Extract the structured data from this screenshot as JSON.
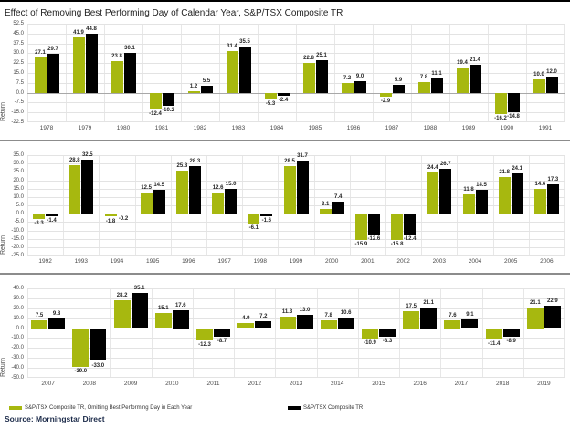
{
  "title": "Effect of Removing Best Performing Day of Calendar Year, S&P/TSX Composite TR",
  "source": "Source: Morningstar Direct",
  "colors": {
    "series_green": "#a7b80f",
    "series_black": "#000000",
    "grid": "#e3e3e3",
    "zero_line": "#a8a8a8",
    "separator": "#8c8c8c",
    "top_border": "#000000",
    "source_text": "#1c2b4a"
  },
  "legend": [
    {
      "label": "S&P/TSX Composite TR, Omitting Best Performing Day in Each Year",
      "color": "#a7b80f"
    },
    {
      "label": "S&P/TSX Composite TR",
      "color": "#000000"
    }
  ],
  "chart_data": [
    {
      "type": "bar",
      "title": "",
      "xlabel": "",
      "ylabel": "Return",
      "categories": [
        "1978",
        "1979",
        "1980",
        "1981",
        "1982",
        "1983",
        "1984",
        "1985",
        "1986",
        "1987",
        "1988",
        "1989",
        "1990",
        "1991"
      ],
      "series": [
        {
          "name": "S&P/TSX Composite TR, Omitting Best Performing Day in Each Year",
          "color": "#a7b80f",
          "values": [
            27.1,
            41.9,
            23.8,
            -12.4,
            1.2,
            31.4,
            -5.3,
            22.8,
            7.2,
            -2.9,
            7.8,
            19.4,
            -16.2,
            10.0
          ]
        },
        {
          "name": "S&P/TSX Composite TR",
          "color": "#000000",
          "values": [
            29.7,
            44.8,
            30.1,
            -10.2,
            5.5,
            35.5,
            -2.4,
            25.1,
            9.0,
            5.9,
            11.1,
            21.4,
            -14.8,
            12.0
          ]
        }
      ],
      "ylim": [
        -22.5,
        52.5
      ],
      "ytick_step": 7.5,
      "yticks": [
        52.5,
        45.0,
        37.5,
        30.0,
        22.5,
        15.0,
        7.5,
        0.0,
        -7.5,
        -15.0,
        -22.5
      ],
      "grid": true,
      "value_labels": true,
      "legend_position": "bottom"
    },
    {
      "type": "bar",
      "title": "",
      "xlabel": "",
      "ylabel": "Return",
      "categories": [
        "1992",
        "1993",
        "1994",
        "1995",
        "1996",
        "1997",
        "1998",
        "1999",
        "2000",
        "2001",
        "2002",
        "2003",
        "2004",
        "2005",
        "2006"
      ],
      "series": [
        {
          "name": "S&P/TSX Composite TR, Omitting Best Performing Day in Each Year",
          "color": "#a7b80f",
          "values": [
            -3.3,
            28.8,
            -1.8,
            12.5,
            25.8,
            12.6,
            -6.1,
            28.5,
            3.1,
            -15.9,
            -15.8,
            24.4,
            11.8,
            21.8,
            14.6
          ]
        },
        {
          "name": "S&P/TSX Composite TR",
          "color": "#000000",
          "values": [
            -1.4,
            32.5,
            -0.2,
            14.5,
            28.3,
            15.0,
            -1.6,
            31.7,
            7.4,
            -12.6,
            -12.4,
            26.7,
            14.5,
            24.1,
            17.3
          ]
        }
      ],
      "ylim": [
        -25.0,
        35.0
      ],
      "ytick_step": 5.0,
      "yticks": [
        35.0,
        30.0,
        25.0,
        20.0,
        15.0,
        10.0,
        5.0,
        0.0,
        -5.0,
        -10.0,
        -15.0,
        -20.0,
        -25.0
      ],
      "grid": true,
      "value_labels": true,
      "legend_position": "bottom"
    },
    {
      "type": "bar",
      "title": "",
      "xlabel": "",
      "ylabel": "Return",
      "categories": [
        "2007",
        "2008",
        "2009",
        "2010",
        "2011",
        "2012",
        "2013",
        "2014",
        "2015",
        "2016",
        "2017",
        "2018",
        "2019"
      ],
      "series": [
        {
          "name": "S&P/TSX Composite TR, Omitting Best Performing Day in Each Year",
          "color": "#a7b80f",
          "values": [
            7.5,
            -39.0,
            28.2,
            15.1,
            -12.3,
            4.9,
            11.3,
            7.8,
            -10.9,
            17.5,
            7.6,
            -11.4,
            21.1
          ]
        },
        {
          "name": "S&P/TSX Composite TR",
          "color": "#000000",
          "values": [
            9.8,
            -33.0,
            35.1,
            17.6,
            -8.7,
            7.2,
            13.0,
            10.6,
            -8.3,
            21.1,
            9.1,
            -8.9,
            22.9
          ]
        }
      ],
      "ylim": [
        -50.0,
        40.0
      ],
      "ytick_step": 10.0,
      "yticks": [
        40.0,
        30.0,
        20.0,
        10.0,
        0.0,
        -10.0,
        -20.0,
        -30.0,
        -40.0,
        -50.0
      ],
      "grid": true,
      "value_labels": true,
      "legend_position": "bottom"
    }
  ]
}
